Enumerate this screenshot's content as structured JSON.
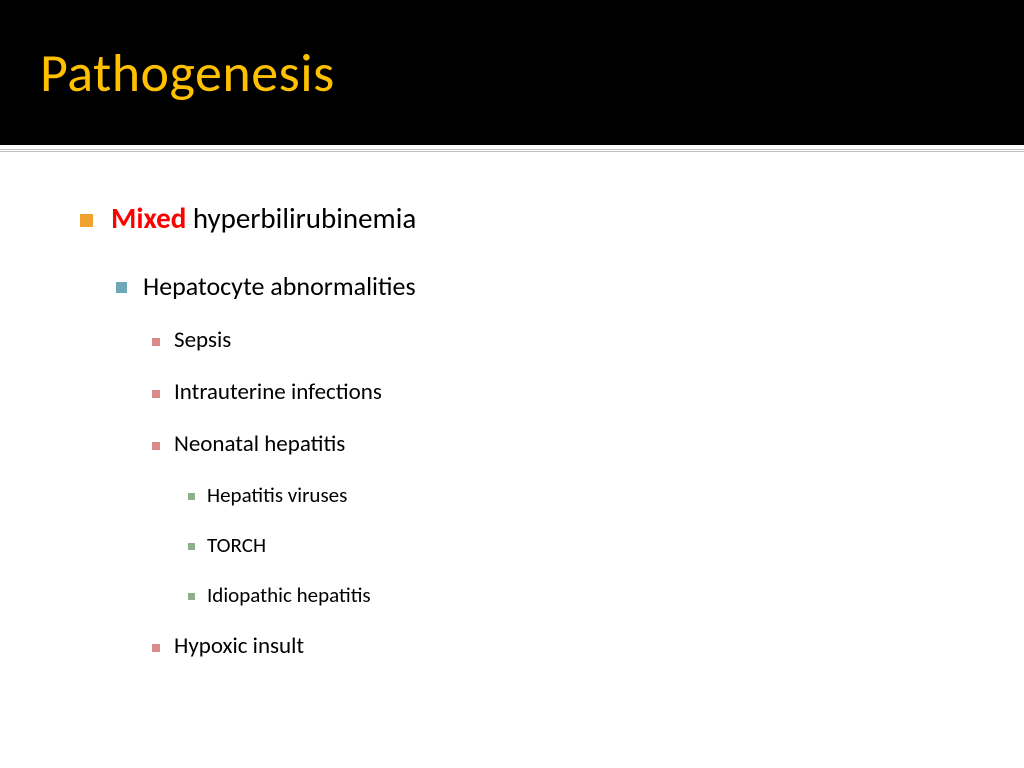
{
  "title": "Pathogenesis",
  "colors": {
    "title_band": "#000000",
    "title_text": "#ffc000",
    "body_text": "#000000",
    "emphasis_text": "#ff0000",
    "bullet_lvl1": "#f0a22e",
    "bullet_lvl2": "#6fa8b8",
    "bullet_lvl3": "#d98a8a",
    "bullet_lvl4": "#8cb08c",
    "divider": "#bfbfbf",
    "background": "#ffffff"
  },
  "typography": {
    "title_fontsize": 54,
    "lvl1_fontsize": 29,
    "lvl2_fontsize": 26,
    "lvl3_fontsize": 23,
    "lvl4_fontsize": 21,
    "font_family": "Calibri"
  },
  "lvl1_prefix": "Mixed",
  "lvl1_rest": " hyperbilirubinemia",
  "lvl2_item": "Hepatocyte abnormalities",
  "lvl3_items": {
    "0": "Sepsis",
    "1": "Intrauterine infections",
    "2": "Neonatal hepatitis",
    "3": "Hypoxic insult"
  },
  "lvl4_items": {
    "0": "Hepatitis viruses",
    "1": "TORCH",
    "2": "Idiopathic hepatitis"
  }
}
